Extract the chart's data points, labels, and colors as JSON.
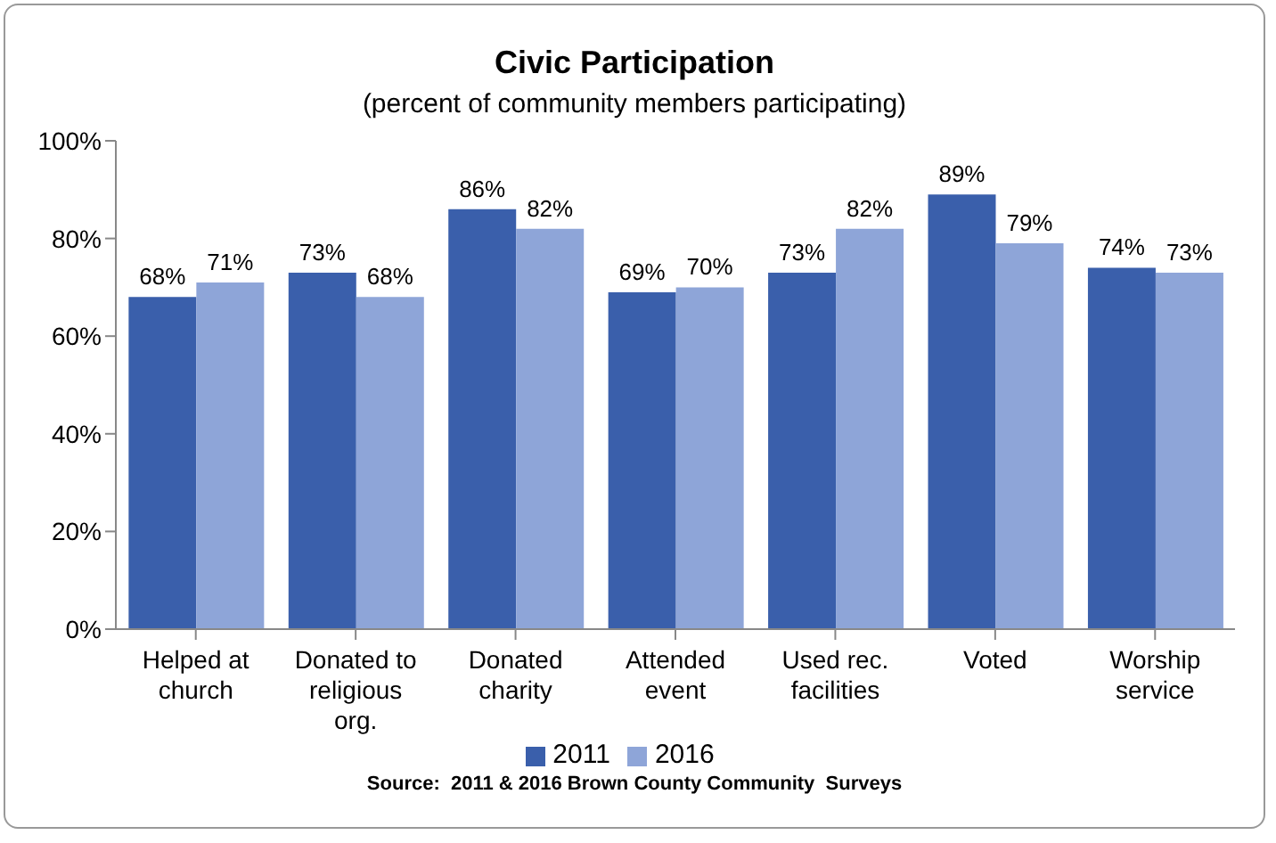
{
  "chart_data": {
    "type": "bar",
    "title": "Civic Participation",
    "subtitle": "(percent of community members participating)",
    "categories": [
      "Helped at church",
      "Donated to religious org.",
      "Donated charity",
      "Attended event",
      "Used rec. facilities",
      "Voted",
      "Worship service"
    ],
    "series": [
      {
        "name": "2011",
        "color": "#3a5fab",
        "values": [
          68,
          73,
          86,
          69,
          73,
          89,
          74
        ],
        "value_labels": [
          "68%",
          "73%",
          "86%",
          "69%",
          "73%",
          "89%",
          "74%"
        ]
      },
      {
        "name": "2016",
        "color": "#8ea5d8",
        "values": [
          71,
          68,
          82,
          70,
          82,
          79,
          73
        ],
        "value_labels": [
          "71%",
          "68%",
          "82%",
          "70%",
          "82%",
          "79%",
          "73%"
        ]
      }
    ],
    "ylim": [
      0,
      100
    ],
    "yticks": [
      {
        "value": 0,
        "label": "0%"
      },
      {
        "value": 20,
        "label": "20%"
      },
      {
        "value": 40,
        "label": "40%"
      },
      {
        "value": 60,
        "label": "60%"
      },
      {
        "value": 80,
        "label": "80%"
      },
      {
        "value": 100,
        "label": "100%"
      }
    ],
    "grid": false,
    "legend": "bottom",
    "annotations": [
      "Source:  2011 & 2016 Brown County Community  Surveys"
    ]
  }
}
